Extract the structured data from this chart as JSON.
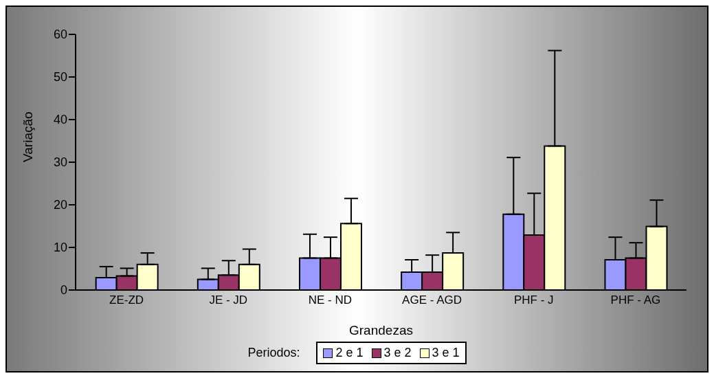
{
  "chart_data": {
    "type": "bar",
    "xlabel": "Grandezas",
    "ylabel": "Variação",
    "legend_title": "Periodos:",
    "legend": "bottom",
    "grid": false,
    "categories": [
      "ZE-ZD",
      "JE - JD",
      "NE - ND",
      "AGE - AGD",
      "PHF - J",
      "PHF - AG"
    ],
    "ylim": [
      0,
      60
    ],
    "yticks": [
      0,
      10,
      20,
      30,
      40,
      50,
      60
    ],
    "series": [
      {
        "name": "2 e 1",
        "color": "#9999ff",
        "values": [
          2.9,
          2.5,
          7.5,
          4.2,
          17.8,
          7.1
        ],
        "errors": [
          [
            2.9,
            5.5
          ],
          [
            2.5,
            5.1
          ],
          [
            7.5,
            13.1
          ],
          [
            4.2,
            7.1
          ],
          [
            17.8,
            31.1
          ],
          [
            7.1,
            12.4
          ]
        ]
      },
      {
        "name": "3 e 2",
        "color": "#993366",
        "values": [
          3.3,
          3.5,
          7.5,
          4.2,
          12.9,
          7.5
        ],
        "errors": [
          [
            3.3,
            5.1
          ],
          [
            3.5,
            6.9
          ],
          [
            7.5,
            12.4
          ],
          [
            4.2,
            8.2
          ],
          [
            12.9,
            22.7
          ],
          [
            7.5,
            11.1
          ]
        ]
      },
      {
        "name": "3 e 1",
        "color": "#ffffcc",
        "values": [
          6.0,
          6.0,
          15.6,
          8.7,
          33.8,
          14.9
        ],
        "errors": [
          [
            6.0,
            8.7
          ],
          [
            6.0,
            9.6
          ],
          [
            15.6,
            21.5
          ],
          [
            8.7,
            13.5
          ],
          [
            33.8,
            56.2
          ],
          [
            14.9,
            21.1
          ]
        ]
      }
    ]
  }
}
